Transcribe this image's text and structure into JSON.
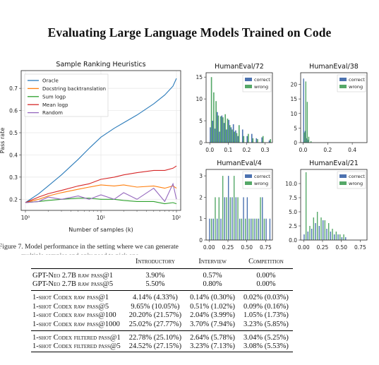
{
  "paper_title": "Evaluating Large Language Models Trained on Code",
  "caption": "Figure 7. Model performance in the setting where we can generate",
  "caption_cut": "multiple samples and only need to pick one",
  "colors": {
    "blue": "#4c72b0",
    "green": "#55a868",
    "line_blue": "#2b7bba",
    "line_orange": "#ff7f0e",
    "line_green": "#2ca02c",
    "line_red": "#d62728",
    "line_purple": "#9467bd"
  },
  "chart_data": [
    {
      "type": "line",
      "title": "Sample Ranking Heuristics",
      "xlabel": "Number of samples (k)",
      "ylabel": "Pass rate",
      "xscale": "log",
      "xlim": [
        1,
        100
      ],
      "ylim": [
        0.15,
        0.78
      ],
      "xticks": [
        "10⁰",
        "10¹",
        "10²"
      ],
      "yticks": [
        "0.2",
        "0.3",
        "0.4",
        "0.5",
        "0.6",
        "0.7"
      ],
      "legend_position": "top-left",
      "grid": true,
      "series": [
        {
          "name": "Oracle",
          "color": "#2b7bba",
          "x": [
            1,
            1.5,
            2,
            3,
            5,
            7,
            10,
            15,
            20,
            30,
            50,
            70,
            90,
            100
          ],
          "y": [
            0.185,
            0.225,
            0.26,
            0.31,
            0.38,
            0.43,
            0.48,
            0.52,
            0.545,
            0.58,
            0.63,
            0.67,
            0.71,
            0.745
          ]
        },
        {
          "name": "Docstring backtranslation",
          "color": "#ff7f0e",
          "x": [
            1,
            1.5,
            2,
            3,
            5,
            7,
            10,
            15,
            20,
            30,
            50,
            70,
            90,
            100
          ],
          "y": [
            0.185,
            0.2,
            0.215,
            0.23,
            0.245,
            0.255,
            0.265,
            0.26,
            0.265,
            0.255,
            0.26,
            0.25,
            0.26,
            0.25
          ]
        },
        {
          "name": "Sum logp",
          "color": "#2ca02c",
          "x": [
            1,
            1.5,
            2,
            3,
            5,
            7,
            10,
            15,
            20,
            30,
            50,
            70,
            90,
            100
          ],
          "y": [
            0.185,
            0.19,
            0.195,
            0.2,
            0.205,
            0.205,
            0.2,
            0.2,
            0.195,
            0.19,
            0.19,
            0.18,
            0.185,
            0.18
          ]
        },
        {
          "name": "Mean logp",
          "color": "#d62728",
          "x": [
            1,
            1.5,
            2,
            3,
            5,
            7,
            10,
            15,
            20,
            30,
            50,
            70,
            90,
            100
          ],
          "y": [
            0.185,
            0.21,
            0.225,
            0.24,
            0.26,
            0.27,
            0.29,
            0.3,
            0.31,
            0.32,
            0.33,
            0.33,
            0.34,
            0.35
          ]
        },
        {
          "name": "Random",
          "color": "#9467bd",
          "x": [
            1,
            1.5,
            2,
            3,
            5,
            7,
            10,
            15,
            20,
            30,
            50,
            70,
            90,
            100
          ],
          "y": [
            0.185,
            0.19,
            0.21,
            0.2,
            0.215,
            0.2,
            0.22,
            0.2,
            0.23,
            0.2,
            0.25,
            0.19,
            0.27,
            0.2
          ]
        }
      ]
    },
    {
      "type": "bar",
      "title": "HumanEval/72",
      "xlim": [
        -0.02,
        0.34
      ],
      "ylim": [
        0,
        16
      ],
      "xticks": [
        "0.0",
        "0.1",
        "0.2",
        "0.3"
      ],
      "yticks": [
        "0",
        "5",
        "10",
        "15"
      ],
      "legend_position": "top-right",
      "bin_width": 0.0125,
      "series": [
        {
          "name": "correct",
          "color": "#4c72b0",
          "x": [
            0.0,
            0.0125,
            0.025,
            0.0375,
            0.05,
            0.0625,
            0.075,
            0.0875,
            0.1,
            0.1125,
            0.125,
            0.1375,
            0.15,
            0.175,
            0.2,
            0.225,
            0.25,
            0.28,
            0.32
          ],
          "y": [
            3.5,
            5.0,
            3.2,
            7.0,
            2.5,
            6.2,
            4.5,
            3.0,
            5.2,
            3.5,
            4.2,
            2.8,
            1.5,
            3.0,
            1.5,
            2.0,
            1.0,
            1.2,
            0.5
          ]
        },
        {
          "name": "wrong",
          "color": "#55a868",
          "x": [
            0.006,
            0.0185,
            0.031,
            0.0435,
            0.056,
            0.0685,
            0.081,
            0.0935,
            0.106,
            0.1185,
            0.131,
            0.1435,
            0.156,
            0.181,
            0.206,
            0.231,
            0.256,
            0.286,
            0.326
          ],
          "y": [
            15.0,
            11.5,
            9.5,
            6.2,
            6.0,
            5.8,
            6.5,
            5.5,
            4.0,
            3.0,
            2.5,
            2.2,
            4.0,
            1.5,
            2.0,
            1.0,
            0.8,
            1.5,
            0.8
          ]
        }
      ]
    },
    {
      "type": "bar",
      "title": "HumanEval/38",
      "xlim": [
        -0.02,
        0.52
      ],
      "ylim": [
        0,
        24
      ],
      "xticks": [
        "0.0",
        "0.2",
        "0.4"
      ],
      "yticks": [
        "0",
        "5",
        "10",
        "15",
        "20"
      ],
      "legend_position": "top-right",
      "bin_width": 0.012,
      "series": [
        {
          "name": "correct",
          "color": "#4c72b0",
          "x": [
            0.0,
            0.012,
            0.024,
            0.036
          ],
          "y": [
            22.0,
            4.0,
            1.5,
            1.0
          ]
        },
        {
          "name": "wrong",
          "color": "#55a868",
          "x": [
            0.006,
            0.018,
            0.03,
            0.042,
            0.06
          ],
          "y": [
            3.5,
            21.0,
            14.0,
            2.0,
            0.5
          ]
        }
      ]
    },
    {
      "type": "bar",
      "title": "HumanEval/4",
      "xlim": [
        -0.04,
        0.84
      ],
      "ylim": [
        0,
        3.3
      ],
      "xticks": [
        "0.00",
        "0.25",
        "0.50",
        "0.75"
      ],
      "yticks": [
        "0",
        "1",
        "2",
        "3"
      ],
      "legend_position": "top-right",
      "bin_width": 0.025,
      "series": [
        {
          "name": "correct",
          "color": "#4c72b0",
          "x": [
            0.0,
            0.05,
            0.1,
            0.15,
            0.2,
            0.25,
            0.3,
            0.35,
            0.4,
            0.45,
            0.5,
            0.55,
            0.6,
            0.65,
            0.7,
            0.75,
            0.8
          ],
          "y": [
            1.0,
            1.0,
            1.0,
            1.0,
            2.0,
            3.0,
            2.0,
            2.0,
            1.0,
            2.0,
            2.0,
            1.0,
            1.0,
            1.0,
            2.0,
            1.0,
            1.0
          ]
        },
        {
          "name": "wrong",
          "color": "#55a868",
          "x": [
            0.025,
            0.075,
            0.125,
            0.175,
            0.225,
            0.275,
            0.325,
            0.375,
            0.425,
            0.475,
            0.525,
            0.575,
            0.625,
            0.675,
            0.725
          ],
          "y": [
            1.0,
            2.0,
            2.0,
            3.0,
            2.0,
            2.0,
            3.0,
            2.0,
            1.0,
            1.0,
            1.0,
            1.0,
            1.0,
            2.0,
            1.0
          ]
        }
      ]
    },
    {
      "type": "bar",
      "title": "HumanEval/21",
      "xlim": [
        -0.04,
        0.84
      ],
      "ylim": [
        0,
        12.5
      ],
      "xticks": [
        "0.00",
        "0.25",
        "0.50",
        "0.75"
      ],
      "yticks": [
        "0.0",
        "2.5",
        "5.0",
        "7.5",
        "10.0"
      ],
      "legend_position": "top-right",
      "bin_width": 0.025,
      "series": [
        {
          "name": "correct",
          "color": "#4c72b0",
          "x": [
            0.0,
            0.05,
            0.1,
            0.15,
            0.2,
            0.25,
            0.3,
            0.35,
            0.4,
            0.45,
            0.5,
            0.55
          ],
          "y": [
            1.0,
            1.5,
            2.0,
            3.0,
            2.5,
            3.5,
            2.0,
            1.5,
            1.0,
            1.0,
            0.5,
            0.5
          ]
        },
        {
          "name": "wrong",
          "color": "#55a868",
          "x": [
            0.025,
            0.075,
            0.125,
            0.175,
            0.225,
            0.275,
            0.325,
            0.375,
            0.425,
            0.475,
            0.525
          ],
          "y": [
            12.0,
            2.5,
            4.0,
            5.0,
            4.0,
            3.5,
            3.0,
            2.0,
            1.5,
            1.0,
            1.0
          ]
        }
      ]
    }
  ],
  "table": {
    "columns": [
      "",
      "Introductory",
      "Interview",
      "Competition"
    ],
    "groups": [
      [
        {
          "model": "GPT-Neo 2.7B raw pass@1",
          "values": [
            "3.90%",
            "0.57%",
            "0.00%"
          ]
        },
        {
          "model": "GPT-Neo 2.7B raw pass@5",
          "values": [
            "5.50%",
            "0.80%",
            "0.00%"
          ]
        }
      ],
      [
        {
          "model": "1-shot Codex raw pass@1",
          "values": [
            "4.14% (4.33%)",
            "0.14% (0.30%)",
            "0.02% (0.03%)"
          ]
        },
        {
          "model": "1-shot Codex raw pass@5",
          "values": [
            "9.65% (10.05%)",
            "0.51% (1.02%)",
            "0.09% (0.16%)"
          ]
        },
        {
          "model": "1-shot Codex raw pass@100",
          "values": [
            "20.20% (21.57%)",
            "2.04% (3.99%)",
            "1.05% (1.73%)"
          ]
        },
        {
          "model": "1-shot Codex raw pass@1000",
          "values": [
            "25.02% (27.77%)",
            "3.70% (7.94%)",
            "3.23% (5.85%)"
          ]
        }
      ],
      [
        {
          "model": "1-shot Codex filtered pass@1",
          "values": [
            "22.78% (25.10%)",
            "2.64% (5.78%)",
            "3.04% (5.25%)"
          ]
        },
        {
          "model": "1-shot Codex filtered pass@5",
          "values": [
            "24.52% (27.15%)",
            "3.23% (7.13%)",
            "3.08% (5.53%)"
          ]
        }
      ]
    ]
  }
}
